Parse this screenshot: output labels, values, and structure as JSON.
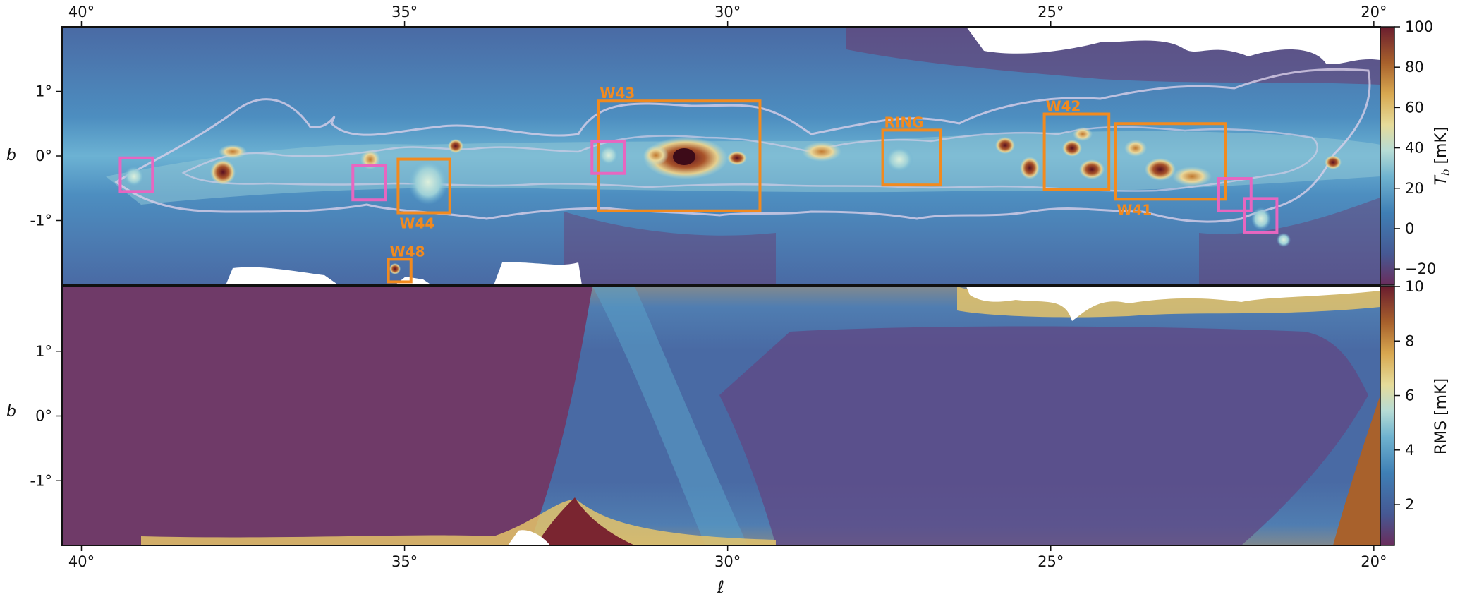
{
  "chart_data": [
    {
      "type": "heatmap",
      "panel": "top",
      "quantity": "brightness temperature",
      "xlabel": "",
      "ylabel": "b",
      "colorbar_label": "T_b [mK]",
      "x_range_deg": [
        40.3,
        19.9
      ],
      "y_range_deg": [
        -2.0,
        2.0
      ],
      "x_ticks": [
        {
          "value": 40,
          "label": "40°"
        },
        {
          "value": 35,
          "label": "35°"
        },
        {
          "value": 30,
          "label": "30°"
        },
        {
          "value": 25,
          "label": "25°"
        },
        {
          "value": 20,
          "label": "20°"
        }
      ],
      "y_ticks": [
        {
          "value": 1,
          "label": "1°"
        },
        {
          "value": 0,
          "label": "0°"
        },
        {
          "value": -1,
          "label": "-1°"
        }
      ],
      "colorbar_range": [
        -28,
        100
      ],
      "colorbar_ticks": [
        {
          "value": 100,
          "label": "100"
        },
        {
          "value": 80,
          "label": "80"
        },
        {
          "value": 60,
          "label": "60"
        },
        {
          "value": 40,
          "label": "40"
        },
        {
          "value": 20,
          "label": "20"
        },
        {
          "value": 0,
          "label": "0"
        },
        {
          "value": -20,
          "label": "−20"
        }
      ],
      "regions_labeled": [
        {
          "label": "W43",
          "l_min": 29.5,
          "l_max": 32.0,
          "b_min": -0.85,
          "b_max": 0.85
        },
        {
          "label": "RING",
          "l_min": 26.7,
          "l_max": 27.6,
          "b_min": -0.45,
          "b_max": 0.4
        },
        {
          "label": "W42",
          "l_min": 24.1,
          "l_max": 25.1,
          "b_min": -0.52,
          "b_max": 0.65
        },
        {
          "label": "W41",
          "l_min": 22.3,
          "l_max": 24.0,
          "b_min": -0.67,
          "b_max": 0.5
        },
        {
          "label": "W44",
          "l_min": 34.3,
          "l_max": 35.1,
          "b_min": -0.88,
          "b_max": -0.05
        },
        {
          "label": "W48",
          "l_min": 34.9,
          "l_max": 35.25,
          "b_min": -1.95,
          "b_max": -1.6
        }
      ],
      "regions_unlabeled": [
        {
          "l_min": 38.9,
          "l_max": 39.4,
          "b_min": -0.55,
          "b_max": -0.03
        },
        {
          "l_min": 35.3,
          "l_max": 35.8,
          "b_min": -0.68,
          "b_max": -0.15
        },
        {
          "l_min": 31.6,
          "l_max": 32.1,
          "b_min": -0.27,
          "b_max": 0.23
        },
        {
          "l_min": 21.9,
          "l_max": 22.4,
          "b_min": -0.85,
          "b_max": -0.35
        },
        {
          "l_min": 21.5,
          "l_max": 22.0,
          "b_min": -1.18,
          "b_max": -0.66
        }
      ],
      "bright_sources": [
        {
          "l": 30.8,
          "b": -0.05,
          "peak_mK": 100
        },
        {
          "l": 30.0,
          "b": -0.02,
          "peak_mK": 90
        },
        {
          "l": 34.25,
          "b": 0.15,
          "peak_mK": 90
        },
        {
          "l": 35.0,
          "b": -0.4,
          "peak_mK": 40
        },
        {
          "l": 25.4,
          "b": -0.2,
          "peak_mK": 90
        },
        {
          "l": 24.5,
          "b": 0.0,
          "peak_mK": 80
        },
        {
          "l": 23.4,
          "b": -0.2,
          "peak_mK": 85
        },
        {
          "l": 20.7,
          "b": -0.1,
          "peak_mK": 85
        },
        {
          "l": 37.8,
          "b": -0.3,
          "peak_mK": 70
        },
        {
          "l": 28.8,
          "b": 0.05,
          "peak_mK": 60
        },
        {
          "l": 27.3,
          "b": -0.1,
          "peak_mK": 45
        },
        {
          "l": 35.2,
          "b": -1.75,
          "peak_mK": 60
        }
      ]
    },
    {
      "type": "heatmap",
      "panel": "bottom",
      "quantity": "noise RMS",
      "xlabel": "ℓ",
      "ylabel": "b",
      "colorbar_label": "RMS [mK]",
      "x_range_deg": [
        40.3,
        19.9
      ],
      "y_range_deg": [
        -2.0,
        2.0
      ],
      "x_ticks": [
        {
          "value": 40,
          "label": "40°"
        },
        {
          "value": 35,
          "label": "35°"
        },
        {
          "value": 30,
          "label": "30°"
        },
        {
          "value": 25,
          "label": "25°"
        },
        {
          "value": 20,
          "label": "20°"
        }
      ],
      "y_ticks": [
        {
          "value": 1,
          "label": "1°"
        },
        {
          "value": 0,
          "label": "0°"
        },
        {
          "value": -1,
          "label": "-1°"
        }
      ],
      "colorbar_range": [
        0.5,
        10
      ],
      "colorbar_ticks": [
        {
          "value": 10,
          "label": "10"
        },
        {
          "value": 8,
          "label": "8"
        },
        {
          "value": 6,
          "label": "6"
        },
        {
          "value": 4,
          "label": "4"
        },
        {
          "value": 2,
          "label": "2"
        }
      ],
      "rms_description": {
        "interior_low_mK": 1.0,
        "edges_high_mK": 10.0,
        "scan_stripes": true
      }
    }
  ],
  "colors": {
    "region_named": "#f28a1e",
    "region_unnamed": "#e766c0",
    "contour": "#d9cfe8"
  }
}
